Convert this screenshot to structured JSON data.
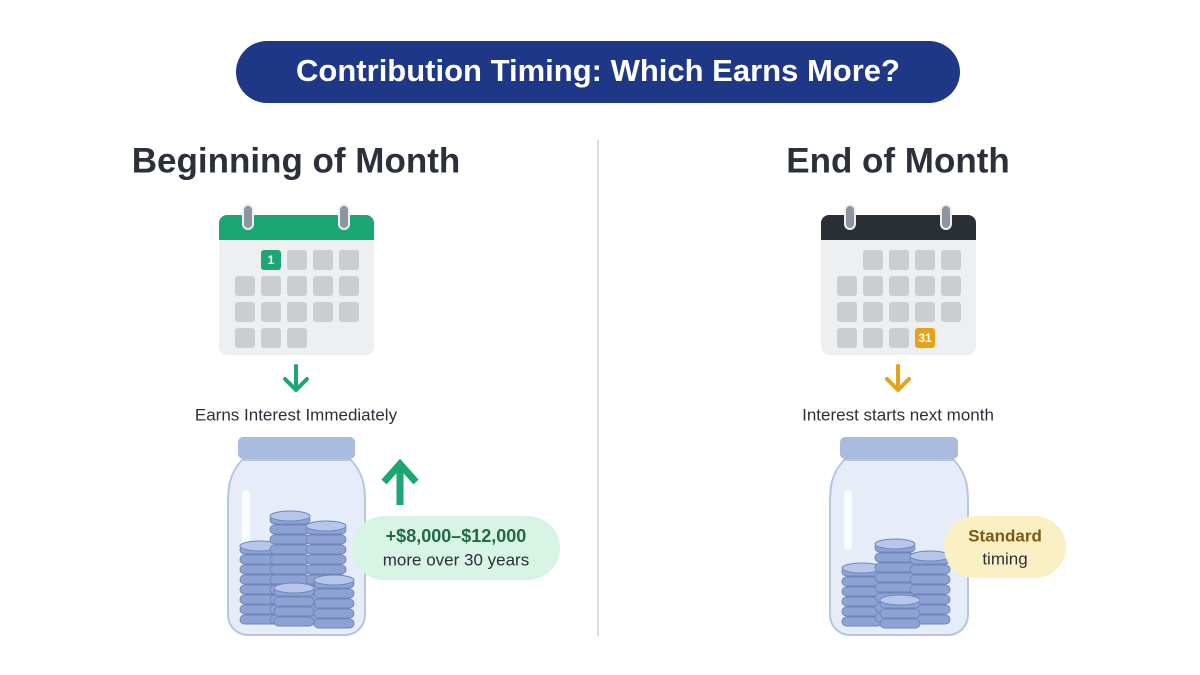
{
  "header": {
    "title": "Contribution Timing: Which Earns More?"
  },
  "left": {
    "heading": "Beginning of Month",
    "calendar_day": "1",
    "caption": "Earns Interest Immediately",
    "badge": {
      "line1": "+$8,000–$12,000",
      "line2": "more over 30 years"
    }
  },
  "right": {
    "heading": "End of Month",
    "calendar_day": "31",
    "caption": "Interest starts next month",
    "badge": {
      "line1": "Standard",
      "line2": "timing"
    }
  }
}
